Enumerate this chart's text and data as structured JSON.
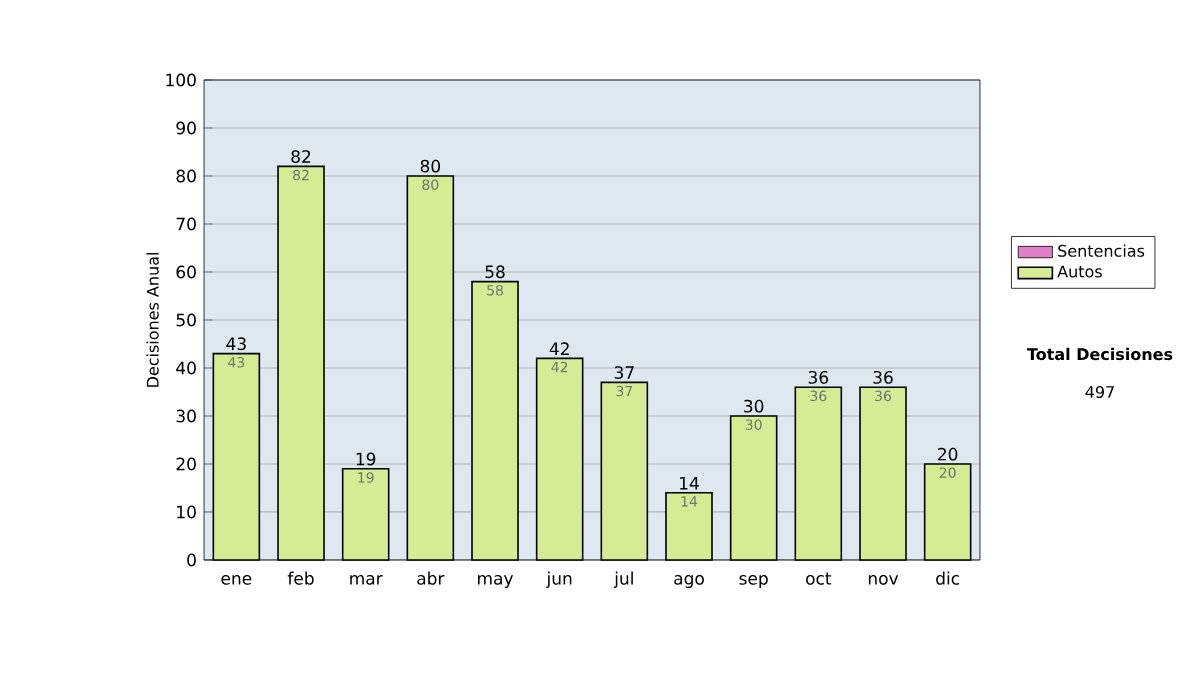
{
  "chart_data": {
    "type": "bar",
    "stacked": true,
    "categories": [
      "ene",
      "feb",
      "mar",
      "abr",
      "may",
      "jun",
      "jul",
      "ago",
      "sep",
      "oct",
      "nov",
      "dic"
    ],
    "ylabel": "Decisiones Anual",
    "ylim": [
      0,
      100
    ],
    "yticks": [
      0,
      10,
      20,
      30,
      40,
      50,
      60,
      70,
      80,
      90,
      100
    ],
    "grid": "y",
    "legend": "right",
    "series": [
      {
        "name": "Sentencias",
        "color": "#e07fc8",
        "values": [
          null,
          null,
          null,
          null,
          null,
          null,
          null,
          null,
          null,
          null,
          null,
          null
        ]
      },
      {
        "name": "Autos",
        "color": "#d4ec94",
        "values": [
          43,
          82,
          19,
          80,
          58,
          42,
          37,
          14,
          30,
          36,
          36,
          20
        ],
        "value_labels": [
          "43",
          "82",
          "19",
          "80",
          "58",
          "42",
          "37",
          "14",
          "30",
          "36",
          "36",
          "20"
        ]
      }
    ],
    "totals": [
      "43",
      "82",
      "19",
      "80",
      "58",
      "42",
      "37",
      "14",
      "30",
      "36",
      "36",
      "20"
    ],
    "annotations": [
      "Total Decisiones",
      "497"
    ]
  }
}
